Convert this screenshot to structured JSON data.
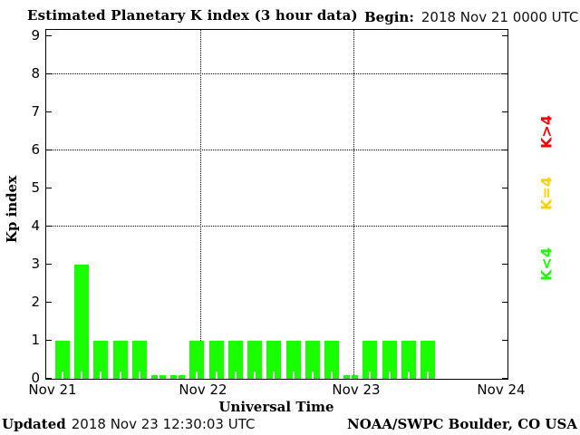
{
  "header": {
    "title": "Estimated Planetary K index (3 hour data)",
    "begin_label": "Begin:",
    "begin_value": "2018 Nov 21 0000 UTC"
  },
  "footer": {
    "updated_label": "Updated",
    "updated_value": "2018 Nov 23 12:30:03 UTC",
    "attribution": "NOAA/SWPC Boulder, CO USA"
  },
  "chart_data": {
    "type": "bar",
    "title": "Estimated Planetary K index (3 hour data)",
    "xlabel": "Universal Time",
    "ylabel": "Kp index",
    "begin": "2018 Nov 21 0000 UTC",
    "hours_per_bar": 3,
    "ylim": [
      0,
      9
    ],
    "yticks": [
      0,
      1,
      2,
      3,
      4,
      5,
      6,
      7,
      8,
      9
    ],
    "gridlines_y": [
      4,
      6,
      8
    ],
    "grid": "dotted",
    "x_day_labels": [
      "Nov 21",
      "Nov 22",
      "Nov 23",
      "Nov 24"
    ],
    "kp_values": [
      1,
      3,
      1,
      1,
      1,
      0,
      0,
      1,
      1,
      1,
      1,
      1,
      1,
      1,
      1,
      0,
      1,
      1,
      1,
      1
    ],
    "bar_color": "#1aff00",
    "color_rules": {
      "k_lt_4": "#1aff00",
      "k_eq_4": "#ffd000",
      "k_gt_4": "#ff0000"
    },
    "legend": [
      {
        "label": "K>4",
        "color": "#ff0000"
      },
      {
        "label": "K=4",
        "color": "#ffd000"
      },
      {
        "label": "K<4",
        "color": "#1aff00"
      }
    ],
    "legend_position": "right"
  }
}
